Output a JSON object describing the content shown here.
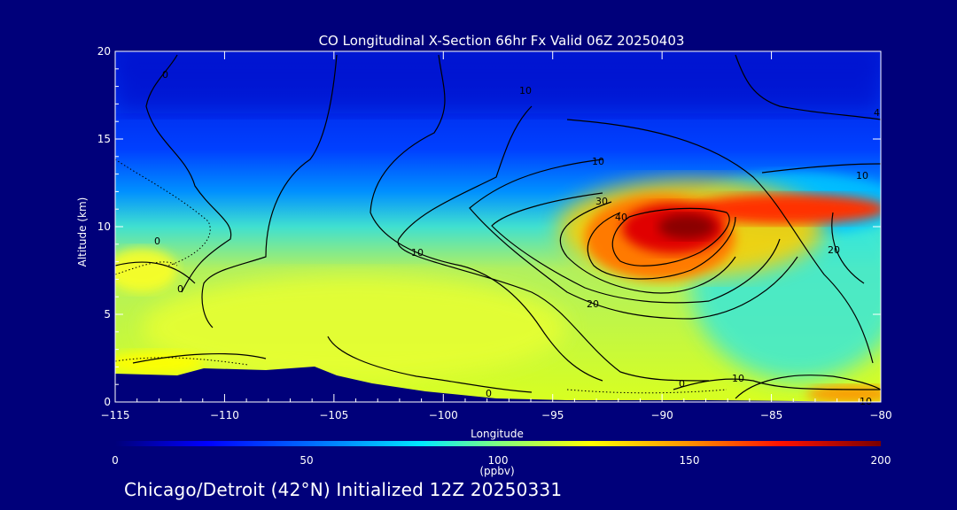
{
  "chart_data": {
    "type": "contour",
    "title": "CO Longitudinal X-Section 66hr  Fx Valid 06Z 20250403",
    "xlabel": "Longitude",
    "ylabel": "Altitude (km)",
    "xlim": [
      -115,
      -80
    ],
    "ylim": [
      0,
      20
    ],
    "x_ticks": [
      "-115",
      "-110",
      "-105",
      "-100",
      "-95",
      "-90",
      "-85",
      "-80"
    ],
    "y_ticks": [
      "0",
      "5",
      "10",
      "15",
      "20"
    ],
    "colorbar": {
      "label": "(ppbv)",
      "range": [
        0,
        200
      ],
      "ticks": [
        "0",
        "50",
        "100",
        "150",
        "200"
      ],
      "colors": [
        "#00007a",
        "#0000ff",
        "#00a0ff",
        "#00ffff",
        "#a0ff60",
        "#ffff00",
        "#ff8000",
        "#ff0000",
        "#7a0000"
      ]
    },
    "contour_labels": [
      "10",
      "10",
      "10",
      "10",
      "20",
      "20",
      "30",
      "40",
      "0",
      "0",
      "0",
      "10",
      "0",
      "0",
      "4",
      "10"
    ],
    "series": [
      {
        "values": [
          {
            "x": -90,
            "y": 10.0,
            "value": 190
          },
          {
            "x": -82,
            "y": 11.0,
            "value": 170
          },
          {
            "x": -113,
            "y": 8.0,
            "value": 115
          },
          {
            "x": -108,
            "y": 5.0,
            "value": 110
          },
          {
            "x": -100,
            "y": 3.0,
            "value": 118
          },
          {
            "x": -85,
            "y": 4.0,
            "value": 92
          },
          {
            "x": -100,
            "y": 12.0,
            "value": 70
          },
          {
            "x": -100,
            "y": 18.0,
            "value": 32
          },
          {
            "x": -82,
            "y": 0.5,
            "value": 150
          }
        ]
      }
    ]
  },
  "footer": "Chicago/Detroit (42°N) Initialized 12Z 20250331"
}
